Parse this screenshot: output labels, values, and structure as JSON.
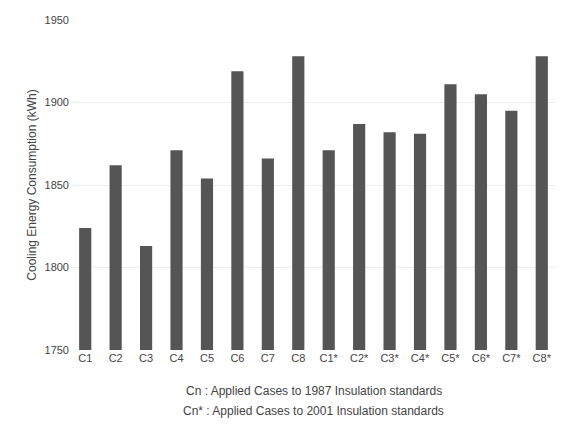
{
  "chart_data": {
    "type": "bar",
    "categories": [
      "C1",
      "C2",
      "C3",
      "C4",
      "C5",
      "C6",
      "C7",
      "C8",
      "C1*",
      "C2*",
      "C3*",
      "C4*",
      "C5*",
      "C6*",
      "C7*",
      "C8*"
    ],
    "values": [
      1824,
      1862,
      1813,
      1871,
      1854,
      1919,
      1866,
      1928,
      1871,
      1887,
      1882,
      1881,
      1911,
      1905,
      1895,
      1928
    ],
    "color": "#555555",
    "ylabel": "Cooling Energy Consumption (kWh)",
    "ylim": [
      1750,
      1950
    ],
    "yticks": [
      1750,
      1800,
      1850,
      1900,
      1950
    ],
    "grid": true,
    "annotations": [
      "Cn : Applied Cases to 1987 Insulation standards",
      "Cn* : Applied Cases to 2001 Insulation standards"
    ]
  }
}
